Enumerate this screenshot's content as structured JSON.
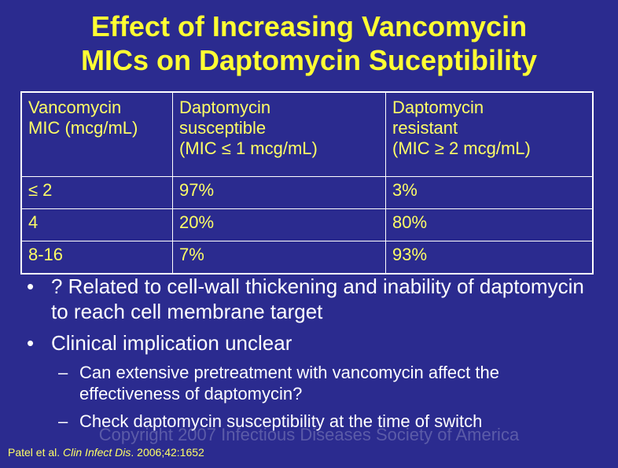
{
  "title": {
    "line1": "Effect of Increasing Vancomycin",
    "line2": "MICs on Daptomycin Suceptibility"
  },
  "table": {
    "header": [
      [
        "Vancomycin",
        "MIC (mcg/mL)"
      ],
      [
        "Daptomycin",
        "susceptible",
        "(MIC ≤ 1 mcg/mL)"
      ],
      [
        "Daptomycin",
        "resistant",
        "(MIC ≥ 2 mcg/mL)"
      ]
    ],
    "rows": [
      [
        "≤ 2",
        "97%",
        "3%"
      ],
      [
        "4",
        "20%",
        "80%"
      ],
      [
        "8-16",
        "7%",
        "93%"
      ]
    ]
  },
  "bullets": [
    {
      "text": "? Related to cell-wall thickening and inability of daptomycin to reach cell membrane target"
    },
    {
      "text": "Clinical implication unclear"
    }
  ],
  "subbullets": [
    {
      "text": "Can extensive pretreatment with vancomycin affect the effectiveness of daptomycin?"
    },
    {
      "text": "Check daptomycin susceptibility at the time of switch"
    }
  ],
  "bullet_symbol": "•",
  "sub_symbol": "–",
  "watermark": "Copyright 2007 Infectious Diseases Society of America",
  "citation": {
    "authors": "Patel et al. ",
    "journal": "Clin Infect Dis",
    "rest": ". 2006;42:1652"
  }
}
